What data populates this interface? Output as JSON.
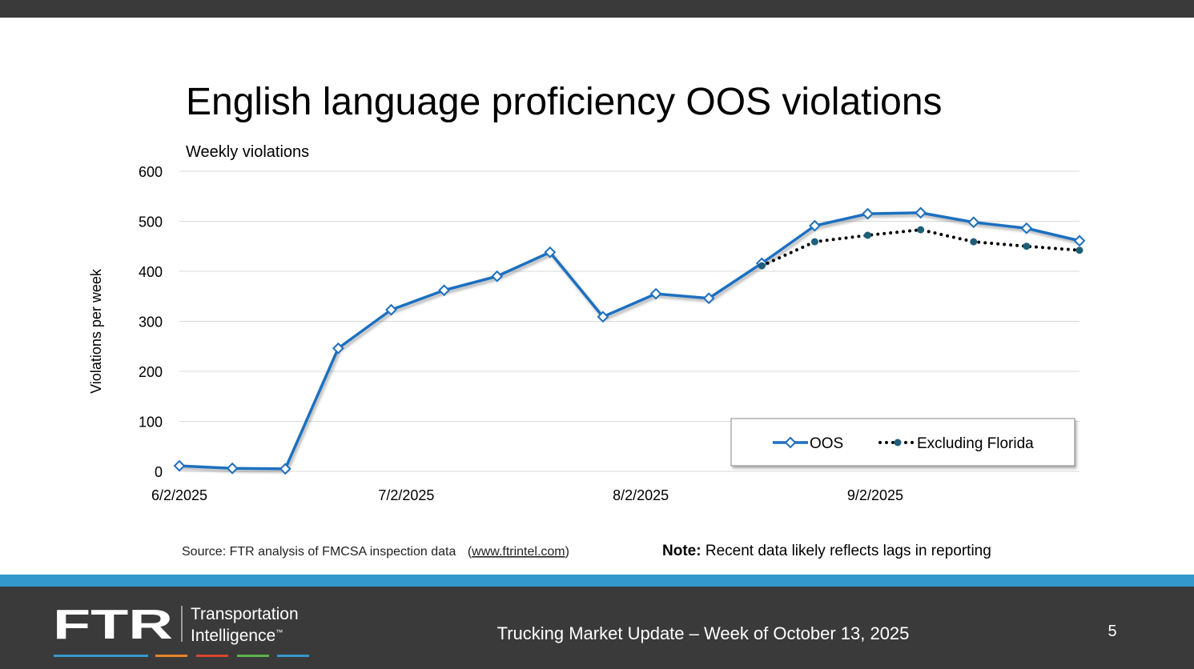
{
  "chart_data": {
    "type": "line",
    "title": "English language proficiency OOS violations",
    "subtitle": "Weekly violations",
    "y_label": "Violations per week",
    "x": [
      "2025-06-02",
      "2025-06-09",
      "2025-06-16",
      "2025-06-23",
      "2025-06-30",
      "2025-07-07",
      "2025-07-14",
      "2025-07-21",
      "2025-07-28",
      "2025-08-04",
      "2025-08-11",
      "2025-08-18",
      "2025-08-25",
      "2025-09-01",
      "2025-09-08",
      "2025-09-15",
      "2025-09-22",
      "2025-09-29"
    ],
    "series": [
      {
        "name": "OOS",
        "color": "#1f6fbf",
        "marker": "diamond",
        "style": "solid",
        "values": [
          11,
          6,
          5,
          246,
          323,
          362,
          390,
          438,
          309,
          355,
          346,
          416,
          491,
          515,
          517,
          498,
          486,
          461
        ]
      },
      {
        "name": "Excluding Florida",
        "color": "#000000",
        "marker_color": "#1f5f7a",
        "marker": "circle",
        "style": "dotted",
        "values": [
          null,
          null,
          null,
          null,
          null,
          null,
          null,
          null,
          null,
          null,
          null,
          411,
          459,
          472,
          483,
          459,
          450,
          442
        ]
      }
    ],
    "xlim": [
      "2025-06-02",
      "2025-09-29"
    ],
    "xticks": [
      {
        "value": "2025-06-02",
        "label": "6/2/2025"
      },
      {
        "value": "2025-07-02",
        "label": "7/2/2025"
      },
      {
        "value": "2025-08-02",
        "label": "8/2/2025"
      },
      {
        "value": "2025-09-02",
        "label": "9/2/2025"
      }
    ],
    "ylim": [
      0,
      600
    ],
    "yticks": [
      0,
      100,
      200,
      300,
      400,
      500,
      600
    ],
    "grid": true,
    "legend": "lower right"
  },
  "source": {
    "text": "Source: FTR analysis of FMCSA inspection data",
    "open": "(",
    "link": "www.ftrintel.com",
    "close": ")"
  },
  "note": {
    "label": "Note:",
    "text": "Recent data likely reflects lags in reporting"
  },
  "footer": {
    "logo": "FTR",
    "line1": "Transportation",
    "line2": "Intelligence",
    "tm": "™",
    "text": "Trucking Market Update – Week of October 13, 2025",
    "page": "5"
  }
}
